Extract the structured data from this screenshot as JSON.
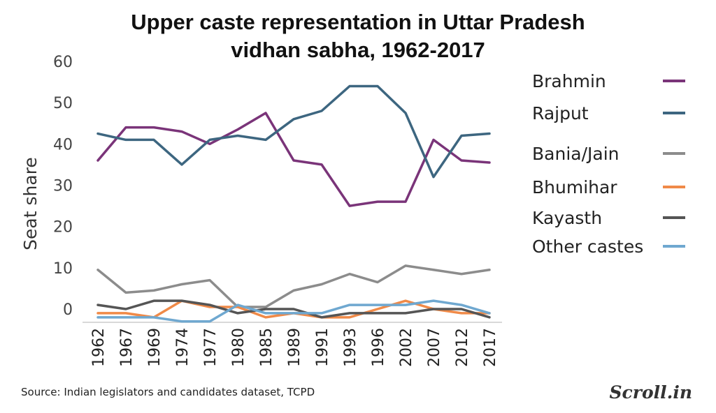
{
  "chart_data": {
    "type": "line",
    "title_line1": "Upper caste representation in Uttar Pradesh",
    "title_line2": "vidhan sabha, 1962-2017",
    "ylabel": "Seat share",
    "xlabel": "",
    "ylim": [
      0,
      60
    ],
    "y_ticks": [
      "60",
      "50",
      "40",
      "30",
      "20",
      "10",
      "0"
    ],
    "categories": [
      "1962",
      "1967",
      "1969",
      "1974",
      "1977",
      "1980",
      "1985",
      "1989",
      "1991",
      "1993",
      "1996",
      "2002",
      "2007",
      "2012",
      "2017"
    ],
    "legend_position": "right",
    "grid": false,
    "series": [
      {
        "name": "Brahmin",
        "color": "#7a3479",
        "values": [
          36,
          44,
          44,
          43,
          40,
          43.5,
          47.5,
          36,
          35,
          25,
          26,
          26,
          41,
          36,
          35.5
        ]
      },
      {
        "name": "Rajput",
        "color": "#3d6680",
        "values": [
          42.5,
          41,
          41,
          35,
          41,
          42,
          41,
          46,
          48,
          54,
          54,
          47.5,
          32,
          42,
          42.5
        ]
      },
      {
        "name": "Bania/Jain",
        "color": "#8c8c8c",
        "values": [
          9.5,
          4,
          4.5,
          6,
          7,
          0.5,
          0.5,
          4.5,
          6,
          8.5,
          6.5,
          10.5,
          9.5,
          8.5,
          9.5
        ]
      },
      {
        "name": "Bhumihar",
        "color": "#f08a48",
        "values": [
          -1,
          -1,
          -2,
          2,
          0.5,
          0.5,
          -2,
          -1,
          -2,
          -2,
          0,
          2,
          0,
          -1,
          -1
        ]
      },
      {
        "name": "Kayasth",
        "color": "#555555",
        "values": [
          1,
          0,
          2,
          2,
          1,
          -1,
          0,
          0,
          -2,
          -1,
          -1,
          -1,
          0,
          0,
          -2
        ]
      },
      {
        "name": "Other castes",
        "color": "#6fa8d0",
        "values": [
          -2,
          -2,
          -2,
          -3,
          -3,
          1,
          -1,
          -1,
          -1,
          1,
          1,
          1,
          2,
          1,
          -1
        ]
      }
    ]
  },
  "source": "Source: Indian legislators and candidates dataset, TCPD",
  "brand": "Scroll.in"
}
